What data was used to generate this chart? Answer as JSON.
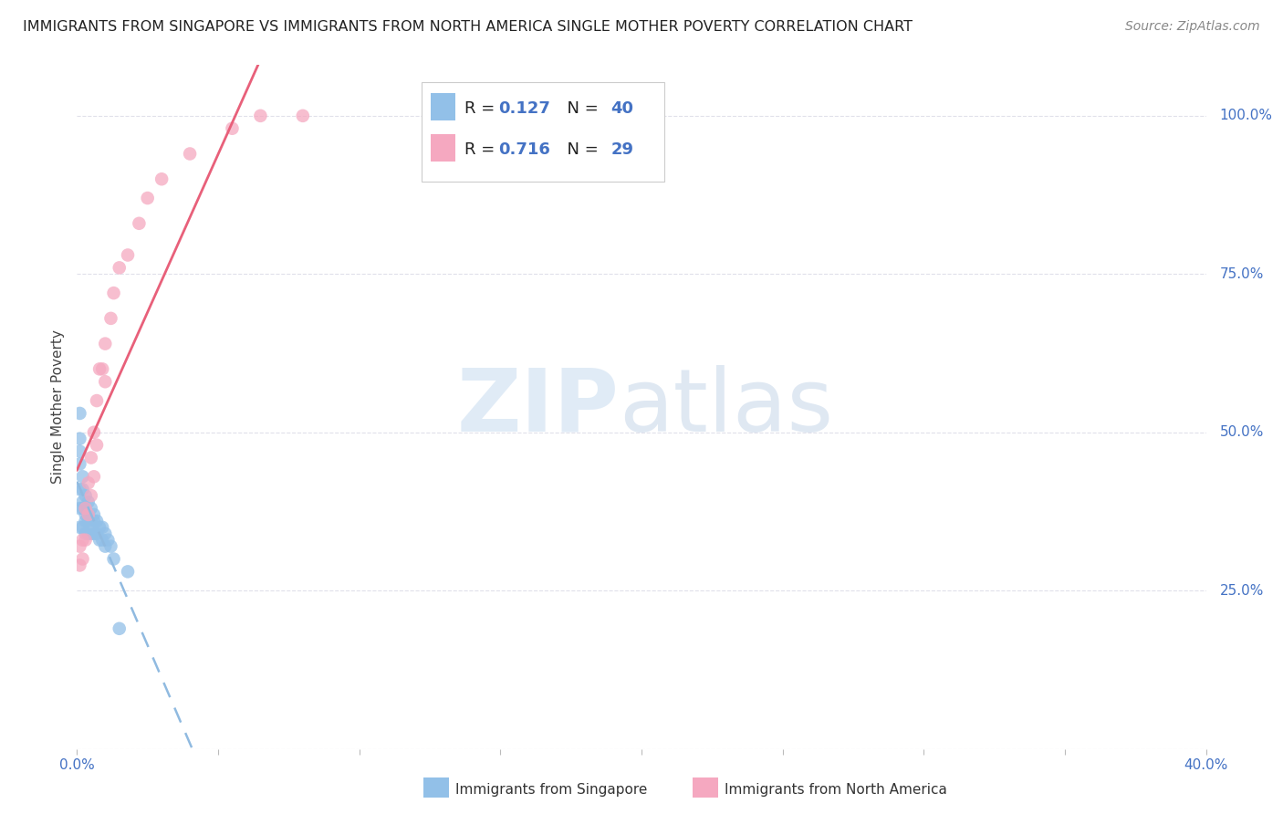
{
  "title": "IMMIGRANTS FROM SINGAPORE VS IMMIGRANTS FROM NORTH AMERICA SINGLE MOTHER POVERTY CORRELATION CHART",
  "source": "Source: ZipAtlas.com",
  "ylabel": "Single Mother Poverty",
  "xlim": [
    0.0,
    0.4
  ],
  "ylim": [
    0.0,
    1.08
  ],
  "singapore_color": "#92C0E8",
  "north_america_color": "#F5A8C0",
  "line_blue": "#90BAE0",
  "line_pink": "#E8607A",
  "legend_R1_label": "R = ",
  "legend_R1_val": "0.127",
  "legend_N1_label": "N = ",
  "legend_N1_val": "40",
  "legend_R2_label": "R = ",
  "legend_R2_val": "0.716",
  "legend_N2_label": "N = ",
  "legend_N2_val": "29",
  "watermark_zip": "ZIP",
  "watermark_atlas": "atlas",
  "bg_color": "#FFFFFF",
  "grid_color": "#E0E0EA",
  "title_fontsize": 11.5,
  "axis_label_fontsize": 11,
  "tick_color": "#4472C4",
  "singapore_x": [
    0.001,
    0.001,
    0.001,
    0.001,
    0.001,
    0.001,
    0.001,
    0.002,
    0.002,
    0.002,
    0.002,
    0.002,
    0.003,
    0.003,
    0.003,
    0.003,
    0.003,
    0.004,
    0.004,
    0.004,
    0.004,
    0.005,
    0.005,
    0.005,
    0.006,
    0.006,
    0.006,
    0.007,
    0.007,
    0.008,
    0.008,
    0.009,
    0.009,
    0.01,
    0.01,
    0.011,
    0.012,
    0.013,
    0.015,
    0.018
  ],
  "singapore_y": [
    0.53,
    0.49,
    0.47,
    0.45,
    0.41,
    0.38,
    0.35,
    0.43,
    0.41,
    0.39,
    0.38,
    0.35,
    0.4,
    0.38,
    0.37,
    0.36,
    0.34,
    0.39,
    0.37,
    0.36,
    0.34,
    0.38,
    0.36,
    0.34,
    0.37,
    0.36,
    0.34,
    0.36,
    0.34,
    0.35,
    0.33,
    0.35,
    0.33,
    0.34,
    0.32,
    0.33,
    0.32,
    0.3,
    0.19,
    0.28
  ],
  "north_america_x": [
    0.001,
    0.001,
    0.002,
    0.002,
    0.003,
    0.003,
    0.004,
    0.004,
    0.005,
    0.005,
    0.006,
    0.006,
    0.007,
    0.007,
    0.008,
    0.009,
    0.01,
    0.01,
    0.012,
    0.013,
    0.015,
    0.018,
    0.022,
    0.025,
    0.03,
    0.04,
    0.055,
    0.065,
    0.08
  ],
  "north_america_y": [
    0.32,
    0.29,
    0.33,
    0.3,
    0.38,
    0.33,
    0.42,
    0.37,
    0.46,
    0.4,
    0.5,
    0.43,
    0.55,
    0.48,
    0.6,
    0.6,
    0.64,
    0.58,
    0.68,
    0.72,
    0.76,
    0.78,
    0.83,
    0.87,
    0.9,
    0.94,
    0.98,
    1.0,
    1.0
  ]
}
